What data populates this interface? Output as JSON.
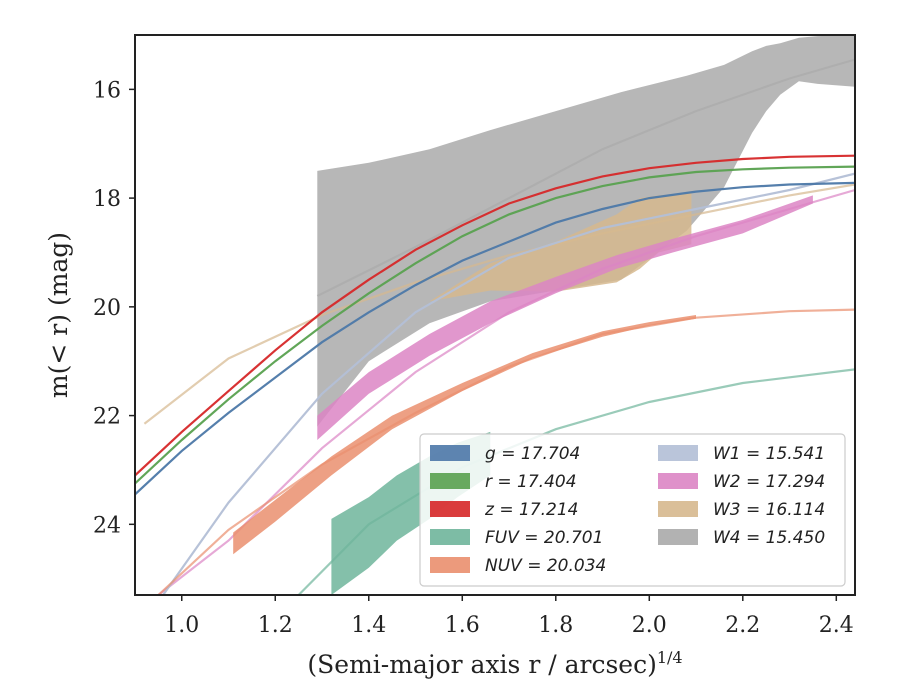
{
  "chart_data": {
    "type": "area",
    "xlabel": "(Semi-major axis r / arcsec)",
    "xlabel_sup": "1/4",
    "ylabel": "m(< r) (mag)",
    "xlim": [
      0.9,
      2.44
    ],
    "ylim": [
      25.3,
      15.0
    ],
    "y_inverted": true,
    "grid": false,
    "legend_position": "lower-right",
    "x_ticks": [
      1.0,
      1.2,
      1.4,
      1.6,
      1.8,
      2.0,
      2.2,
      2.4
    ],
    "x_tick_labels": [
      "1.0",
      "1.2",
      "1.4",
      "1.6",
      "1.8",
      "2.0",
      "2.2",
      "2.4"
    ],
    "y_ticks": [
      16,
      18,
      20,
      22,
      24
    ],
    "y_tick_labels": [
      "16",
      "18",
      "20",
      "22",
      "24"
    ],
    "series": [
      {
        "name": "W4 = 15.450",
        "legend_name": "W4",
        "legend_value": "15.450",
        "color": "#aaaaaa",
        "band_x": [
          1.29,
          1.4,
          1.53,
          1.66,
          1.8,
          1.94,
          2.08,
          2.16,
          2.22,
          2.25,
          2.28,
          2.32,
          2.36,
          2.44
        ],
        "band_lower": [
          17.5,
          17.35,
          17.1,
          16.75,
          16.4,
          16.05,
          15.75,
          15.55,
          15.3,
          15.2,
          15.15,
          15.05,
          15.02,
          15.0
        ],
        "band_upper": [
          22.2,
          21.0,
          20.3,
          19.9,
          19.7,
          19.5,
          18.6,
          17.8,
          16.8,
          16.4,
          16.1,
          15.85,
          15.9,
          15.95
        ],
        "model_x": [
          1.29,
          1.5,
          1.7,
          1.9,
          2.1,
          2.3,
          2.44
        ],
        "model_y": [
          19.8,
          18.9,
          18.0,
          17.1,
          16.4,
          15.8,
          15.45
        ]
      },
      {
        "name": "W3 = 16.114",
        "legend_name": "W3",
        "legend_value": "16.114",
        "color": "#d6b88e",
        "band_x": [
          1.53,
          1.66,
          1.8,
          1.93,
          1.98,
          2.02,
          2.09
        ],
        "band_lower": [
          19.9,
          19.2,
          18.8,
          18.3,
          18.0,
          17.95,
          17.9
        ],
        "band_upper": [
          19.9,
          19.7,
          19.72,
          19.55,
          19.3,
          19.0,
          18.85
        ],
        "model_x": [
          0.92,
          1.1,
          1.3,
          1.5,
          1.7,
          1.9,
          2.1,
          2.3,
          2.44
        ],
        "model_y": [
          22.15,
          20.95,
          20.15,
          19.55,
          19.05,
          18.65,
          18.3,
          17.95,
          17.75
        ]
      },
      {
        "name": "W2 = 17.294",
        "legend_name": "W2",
        "legend_value": "17.294",
        "color": "#dc85c4",
        "band_x": [
          1.29,
          1.4,
          1.53,
          1.66,
          1.8,
          1.93,
          2.05,
          2.2,
          2.35
        ],
        "band_lower": [
          22.0,
          21.2,
          20.5,
          19.9,
          19.45,
          19.05,
          18.75,
          18.4,
          17.95
        ],
        "band_upper": [
          22.45,
          21.6,
          20.9,
          20.3,
          19.75,
          19.3,
          19.0,
          18.65,
          18.1
        ],
        "model_x": [
          0.95,
          1.1,
          1.3,
          1.5,
          1.7,
          1.9,
          2.1,
          2.3,
          2.44
        ],
        "model_y": [
          25.3,
          24.3,
          22.6,
          21.2,
          20.1,
          19.3,
          18.7,
          18.2,
          17.85
        ]
      },
      {
        "name": "W1 = 15.541",
        "legend_name": "W1",
        "legend_value": "15.541",
        "color": "#b3bfd6",
        "band_x": [],
        "band_lower": [],
        "band_upper": [],
        "model_x": [
          0.96,
          1.1,
          1.3,
          1.5,
          1.7,
          1.9,
          2.1,
          2.3,
          2.44
        ],
        "model_y": [
          25.3,
          23.6,
          21.6,
          20.1,
          19.1,
          18.55,
          18.2,
          17.85,
          17.55
        ]
      },
      {
        "name": "FUV = 20.701",
        "legend_name": "FUV",
        "legend_value": "20.701",
        "color": "#6fb59b",
        "band_x": [
          1.32,
          1.4,
          1.46,
          1.53,
          1.59,
          1.66
        ],
        "band_lower": [
          23.9,
          23.5,
          23.1,
          22.75,
          22.5,
          22.3
        ],
        "band_upper": [
          25.3,
          24.8,
          24.3,
          23.9,
          23.5,
          23.1
        ],
        "model_x": [
          1.25,
          1.4,
          1.6,
          1.8,
          2.0,
          2.2,
          2.44
        ],
        "model_y": [
          25.3,
          24.0,
          22.95,
          22.25,
          21.75,
          21.4,
          21.15
        ]
      },
      {
        "name": "NUV = 20.034",
        "legend_name": "NUV",
        "legend_value": "20.034",
        "color": "#ea8f6e",
        "band_x": [
          1.11,
          1.2,
          1.32,
          1.45,
          1.6,
          1.75,
          1.9,
          2.0,
          2.1
        ],
        "band_lower": [
          24.15,
          23.55,
          22.75,
          22.0,
          21.4,
          20.85,
          20.45,
          20.28,
          20.15
        ],
        "band_upper": [
          24.55,
          23.95,
          23.1,
          22.25,
          21.55,
          20.95,
          20.55,
          20.35,
          20.22
        ],
        "model_x": [
          0.95,
          1.1,
          1.3,
          1.5,
          1.7,
          1.9,
          2.1,
          2.3,
          2.44
        ],
        "model_y": [
          25.3,
          24.1,
          22.9,
          21.95,
          21.1,
          20.5,
          20.2,
          20.08,
          20.05
        ]
      },
      {
        "name": "g = 17.704",
        "legend_name": "g",
        "legend_value": "17.704",
        "color": "#4c78a8",
        "band_x": [],
        "band_lower": [],
        "band_upper": [],
        "model_x": [
          0.9,
          1.0,
          1.1,
          1.2,
          1.3,
          1.4,
          1.5,
          1.6,
          1.7,
          1.8,
          1.9,
          2.0,
          2.1,
          2.2,
          2.3,
          2.44
        ],
        "model_y": [
          23.45,
          22.65,
          21.95,
          21.3,
          20.65,
          20.1,
          19.6,
          19.15,
          18.8,
          18.45,
          18.2,
          18.0,
          17.88,
          17.8,
          17.75,
          17.72
        ]
      },
      {
        "name": "r = 17.404",
        "legend_name": "r",
        "legend_value": "17.404",
        "color": "#59a14f",
        "band_x": [],
        "band_lower": [],
        "band_upper": [],
        "model_x": [
          0.9,
          1.0,
          1.1,
          1.2,
          1.3,
          1.4,
          1.5,
          1.6,
          1.7,
          1.8,
          1.9,
          2.0,
          2.1,
          2.2,
          2.3,
          2.44
        ],
        "model_y": [
          23.25,
          22.45,
          21.7,
          21.0,
          20.35,
          19.75,
          19.2,
          18.7,
          18.3,
          18.0,
          17.78,
          17.62,
          17.52,
          17.47,
          17.44,
          17.42
        ]
      },
      {
        "name": "z = 17.214",
        "legend_name": "z",
        "legend_value": "17.214",
        "color": "#d62728",
        "band_x": [],
        "band_lower": [],
        "band_upper": [],
        "model_x": [
          0.9,
          1.0,
          1.1,
          1.2,
          1.3,
          1.4,
          1.5,
          1.6,
          1.7,
          1.8,
          1.9,
          2.0,
          2.1,
          2.2,
          2.3,
          2.44
        ],
        "model_y": [
          23.1,
          22.3,
          21.55,
          20.8,
          20.1,
          19.5,
          18.95,
          18.5,
          18.1,
          17.82,
          17.6,
          17.45,
          17.35,
          17.28,
          17.24,
          17.22
        ]
      }
    ],
    "legend_columns": [
      [
        "g = 17.704",
        "r = 17.404",
        "z = 17.214",
        "FUV = 20.701",
        "NUV = 20.034"
      ],
      [
        "W1 = 15.541",
        "W2 = 17.294",
        "W3 = 16.114",
        "W4 = 15.450"
      ]
    ]
  }
}
